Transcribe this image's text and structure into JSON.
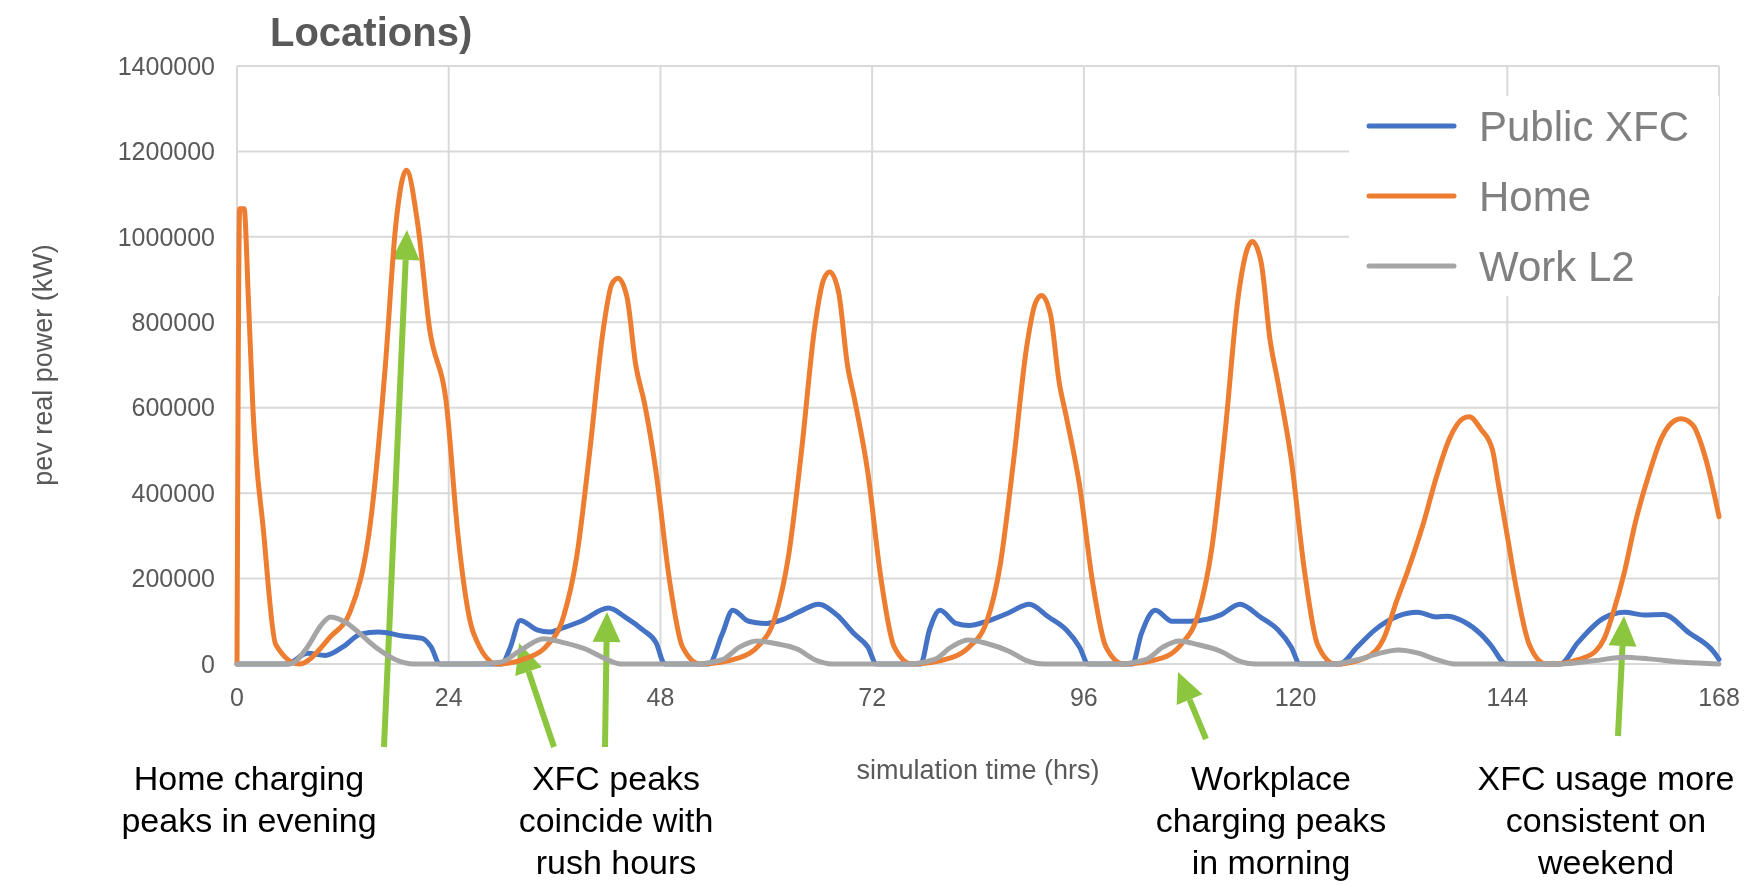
{
  "chart_data": {
    "type": "line",
    "title": "Locations)",
    "xlabel": "simulation time (hrs)",
    "ylabel": "pev real power (kW)",
    "xlim": [
      0,
      168
    ],
    "xticks": [
      0,
      24,
      48,
      72,
      96,
      120,
      144,
      168
    ],
    "ylim": [
      0,
      1400000
    ],
    "yticks": [
      0,
      200000,
      400000,
      600000,
      800000,
      1000000,
      1200000,
      1400000
    ],
    "grid": true,
    "legend": "top right",
    "series": [
      {
        "name": "Public XFC",
        "color": "#4472c4",
        "x": [
          0,
          5.6,
          8,
          10,
          12,
          14,
          16,
          19,
          21,
          22,
          23,
          30,
          31,
          32.1,
          34,
          35.5,
          37,
          39,
          42.1,
          44,
          46,
          47.5,
          48.5,
          53.5,
          55,
          56.2,
          58,
          60,
          62,
          64,
          65.9,
          68,
          70,
          71.5,
          72.5,
          77.5,
          78.5,
          79.7,
          81.5,
          83,
          85,
          87.5,
          89.8,
          92,
          94,
          95.5,
          96.5,
          101.5,
          102.5,
          104.1,
          106,
          108,
          110,
          111.5,
          113.7,
          116,
          118,
          119.5,
          120.5,
          125,
          127,
          129,
          131.6,
          133.8,
          136,
          137.2,
          139,
          141,
          142.1,
          143.9,
          150,
          152,
          154.9,
          157.3,
          159.5,
          161.7,
          164.6,
          167.5,
          168
        ],
        "values": [
          0,
          0,
          25000,
          20000,
          40000,
          70000,
          75000,
          65000,
          60000,
          40000,
          0,
          0,
          40000,
          102000,
          80000,
          75000,
          85000,
          100000,
          131000,
          110000,
          80000,
          50000,
          0,
          0,
          70000,
          126000,
          100000,
          95000,
          105000,
          125000,
          140000,
          115000,
          70000,
          40000,
          0,
          0,
          80000,
          126000,
          95000,
          90000,
          100000,
          120000,
          140000,
          110000,
          80000,
          40000,
          0,
          0,
          70000,
          126000,
          100000,
          100000,
          105000,
          115000,
          140000,
          110000,
          80000,
          40000,
          0,
          0,
          40000,
          80000,
          112000,
          121000,
          110000,
          112000,
          100000,
          70000,
          45000,
          0,
          0,
          50000,
          107000,
          121000,
          115000,
          116000,
          73000,
          26000,
          11000
        ]
      },
      {
        "name": "Home",
        "color": "#ed7d31",
        "x": [
          0,
          0.3,
          0.8,
          1.3,
          1.8,
          3,
          4.4,
          7,
          10.6,
          12.8,
          15.3,
          16.8,
          18,
          19.2,
          20.5,
          21.8,
          23.8,
          25,
          26.8,
          29.5,
          33,
          35,
          37,
          38.5,
          40,
          41.5,
          42.5,
          43.2,
          44.2,
          45.2,
          46.2,
          47.5,
          49,
          50.5,
          52.5,
          57,
          59,
          61,
          62.5,
          64,
          65.5,
          66.5,
          67.2,
          68.2,
          69.2,
          70,
          71.5,
          73,
          74.5,
          76.5,
          81,
          83,
          85,
          86.5,
          88,
          89.5,
          90.5,
          91.2,
          92.2,
          93.2,
          94,
          95.5,
          97,
          98.5,
          100.5,
          105,
          107,
          109,
          110.5,
          112,
          113.5,
          114.5,
          115.1,
          116.1,
          117.1,
          118,
          119.5,
          121,
          122.5,
          124.5,
          128,
          130,
          131.5,
          132.7,
          134.5,
          136,
          137.5,
          139,
          139.7,
          141,
          142.3,
          143,
          144,
          145,
          146.5,
          148.4,
          149.5,
          152,
          154,
          155,
          156,
          157.3,
          158.5,
          160,
          161.5,
          163,
          163.7,
          165,
          166.5,
          168
        ],
        "values": [
          0,
          1066000,
          1066000,
          850000,
          600000,
          312000,
          45000,
          0,
          64000,
          121000,
          360000,
          694000,
          1028000,
          1156000,
          1028000,
          789000,
          598000,
          312000,
          73000,
          0,
          15000,
          40000,
          110000,
          250000,
          500000,
          780000,
          890000,
          903000,
          860000,
          700000,
          610000,
          450000,
          200000,
          40000,
          0,
          15000,
          40000,
          110000,
          250000,
          500000,
          790000,
          900000,
          918000,
          870000,
          700000,
          620000,
          450000,
          200000,
          40000,
          0,
          15000,
          40000,
          100000,
          230000,
          470000,
          740000,
          845000,
          863000,
          820000,
          660000,
          580000,
          420000,
          190000,
          40000,
          0,
          15000,
          45000,
          120000,
          270000,
          540000,
          860000,
          970000,
          989000,
          940000,
          760000,
          660000,
          480000,
          220000,
          45000,
          0,
          15000,
          60000,
          150000,
          217000,
          330000,
          440000,
          530000,
          575000,
          579000,
          550000,
          503000,
          420000,
          300000,
          180000,
          45000,
          0,
          0,
          10000,
          30000,
          60000,
          120000,
          217000,
          330000,
          440000,
          530000,
          570000,
          574000,
          560000,
          480000,
          345000
        ]
      },
      {
        "name": "Work L2",
        "color": "#a5a5a5",
        "x": [
          0,
          6,
          8,
          9.5,
          10.6,
          12.5,
          14,
          16,
          18,
          20,
          27,
          30,
          32,
          34.8,
          37,
          39.5,
          41.5,
          43.5,
          52,
          55,
          57,
          58.9,
          61,
          63.5,
          65.5,
          67.5,
          76,
          79,
          81,
          82.9,
          85,
          87.5,
          89.5,
          91.5,
          100,
          103,
          105,
          106.8,
          109,
          111.5,
          113.5,
          115.5,
          124,
          127,
          129.5,
          131.6,
          134,
          136,
          138,
          150,
          154,
          157.3,
          160,
          164,
          168
        ],
        "values": [
          0,
          0,
          40000,
          90000,
          110000,
          95000,
          70000,
          35000,
          10000,
          0,
          0,
          5000,
          30000,
          59000,
          50000,
          35000,
          15000,
          0,
          0,
          10000,
          40000,
          54000,
          48000,
          35000,
          10000,
          0,
          0,
          10000,
          40000,
          56000,
          48000,
          30000,
          8000,
          0,
          0,
          10000,
          40000,
          54000,
          45000,
          30000,
          8000,
          0,
          0,
          10000,
          25000,
          33000,
          25000,
          10000,
          0,
          0,
          8000,
          16000,
          12000,
          4000,
          0
        ]
      }
    ],
    "annotations": [
      "Home charging peaks in evening",
      "XFC peaks coincide with rush hours",
      "Workplace charging peaks in morning",
      "XFC usage more consistent on weekend"
    ]
  }
}
